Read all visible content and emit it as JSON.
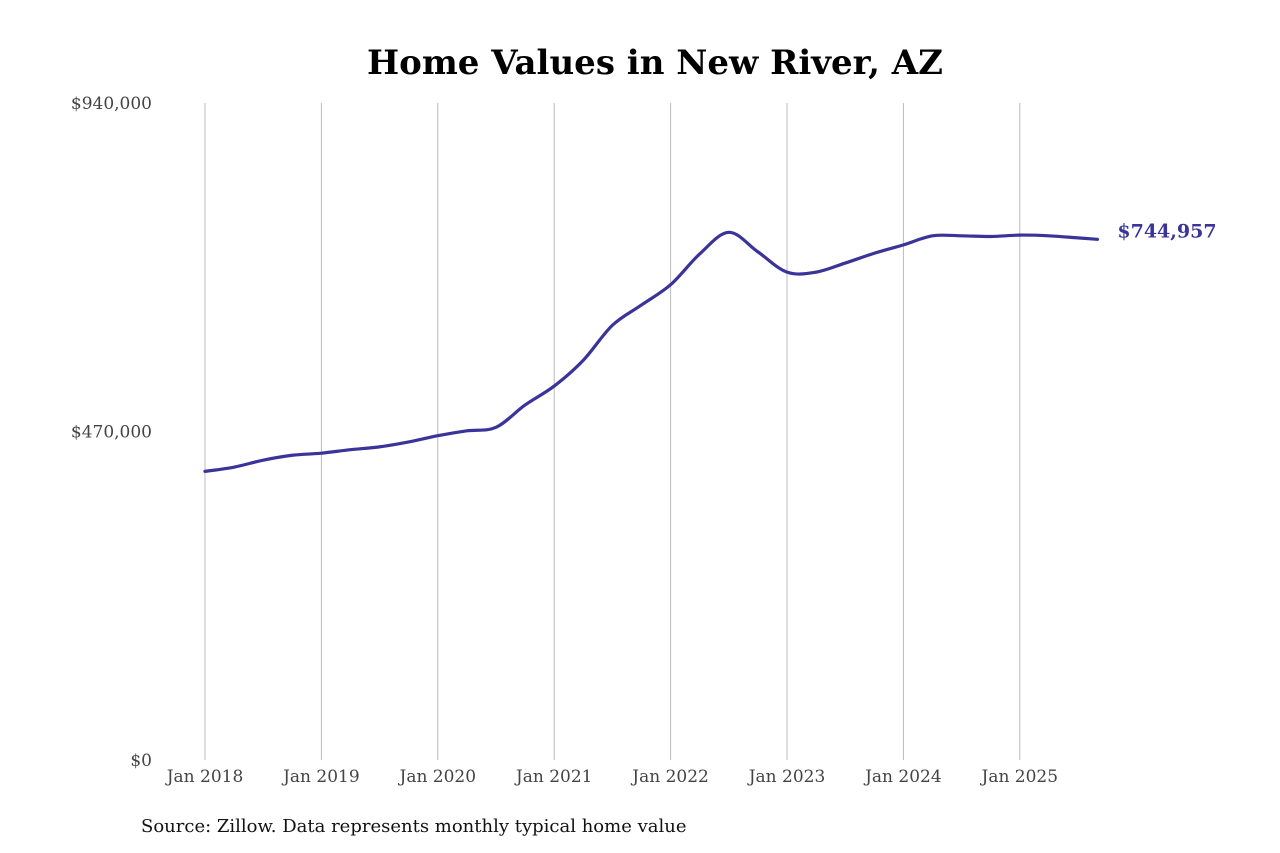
{
  "chart_data": {
    "type": "line",
    "title": "Home Values in New River, AZ",
    "xlabel": "",
    "ylabel": "",
    "ylim": [
      0,
      940000
    ],
    "yticks": [
      0,
      470000,
      940000
    ],
    "ytick_labels": [
      "$0",
      "$470,000",
      "$940,000"
    ],
    "xticks": [
      "2018-01",
      "2019-01",
      "2020-01",
      "2021-01",
      "2022-01",
      "2023-01",
      "2024-01",
      "2025-01"
    ],
    "xtick_labels": [
      "Jan 2018",
      "Jan 2019",
      "Jan 2020",
      "Jan 2021",
      "Jan 2022",
      "Jan 2023",
      "Jan 2024",
      "Jan 2025"
    ],
    "grid": "vertical",
    "line_color": "#3a3399",
    "end_label": "$744,957",
    "x": [
      "2018-01",
      "2018-04",
      "2018-07",
      "2018-10",
      "2019-01",
      "2019-04",
      "2019-07",
      "2019-10",
      "2020-01",
      "2020-04",
      "2020-07",
      "2020-10",
      "2021-01",
      "2021-04",
      "2021-07",
      "2021-10",
      "2022-01",
      "2022-04",
      "2022-07",
      "2022-10",
      "2023-01",
      "2023-04",
      "2023-07",
      "2023-10",
      "2024-01",
      "2024-04",
      "2024-07",
      "2024-10",
      "2025-01",
      "2025-04",
      "2025-07",
      "2025-09"
    ],
    "values": [
      413000,
      419000,
      429000,
      436000,
      439000,
      444000,
      448000,
      455000,
      464000,
      471000,
      476000,
      508000,
      535000,
      572000,
      622000,
      651000,
      680000,
      724000,
      755000,
      727000,
      698000,
      698000,
      711000,
      725000,
      737000,
      750000,
      750000,
      749000,
      751000,
      750000,
      747000,
      744957
    ]
  },
  "footer": {
    "source": "Source: Zillow. Data represents monthly typical home value"
  }
}
